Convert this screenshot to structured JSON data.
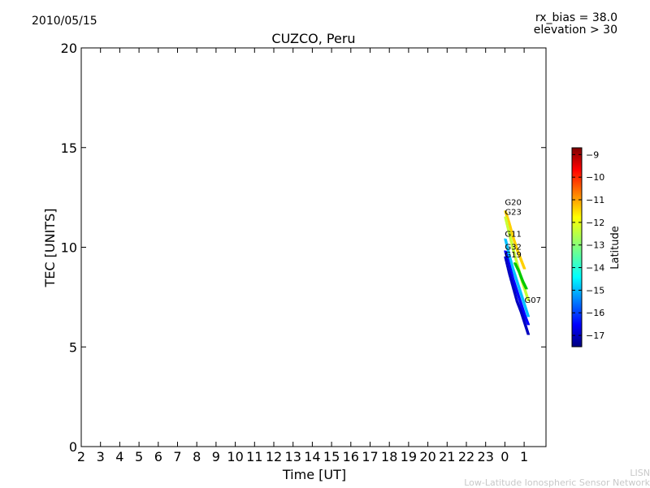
{
  "header": {
    "date": "2010/05/15",
    "info_line1": "rx_bias = 38.0",
    "info_line2": "elevation > 30",
    "title": "CUZCO, Peru"
  },
  "footer": {
    "line1": "LISN",
    "line2": "Low-Latitude Ionospheric Sensor Network"
  },
  "colors": {
    "colormap": [
      "#00007f",
      "#0000ff",
      "#007fff",
      "#00ffff",
      "#7fff7f",
      "#ffff00",
      "#ff7f00",
      "#ff0000",
      "#7f0000"
    ],
    "axis": "#000000"
  },
  "chart_data": {
    "type": "scatter",
    "title": "CUZCO, Peru",
    "xlabel": "Time [UT]",
    "ylabel": "TEC [UNITS]",
    "ylim": [
      0,
      20
    ],
    "yticks": [
      "0",
      "5",
      "10",
      "15",
      "20"
    ],
    "xticks": [
      "2",
      "3",
      "4",
      "5",
      "6",
      "7",
      "8",
      "9",
      "10",
      "11",
      "12",
      "13",
      "14",
      "15",
      "16",
      "17",
      "18",
      "19",
      "20",
      "21",
      "22",
      "23",
      "0",
      "1"
    ],
    "grid": false,
    "colorbar": {
      "label": "Latitude",
      "range": [
        -17.5,
        -8.7
      ],
      "ticks": [
        "−9",
        "−10",
        "−11",
        "−12",
        "−13",
        "−14",
        "−15",
        "−16",
        "−17"
      ],
      "tick_values": [
        -9,
        -10,
        -11,
        -12,
        -13,
        -14,
        -15,
        -16,
        -17
      ]
    },
    "series": [
      {
        "name": "G20",
        "color": "#ffd000",
        "x": [
          24.0,
          24.2,
          24.4,
          24.6,
          24.8,
          25.0
        ],
        "y": [
          11.8,
          11.2,
          10.5,
          9.9,
          9.4,
          8.9
        ]
      },
      {
        "name": "G23",
        "color": "#c8ff30",
        "x": [
          24.0,
          24.2,
          24.4,
          24.6,
          24.8,
          25.0,
          25.2
        ],
        "y": [
          11.5,
          10.7,
          9.9,
          9.2,
          8.5,
          7.9,
          7.3
        ]
      },
      {
        "name": "G11",
        "color": "#00c0ff",
        "x": [
          24.0,
          24.2,
          24.4,
          24.6,
          24.8,
          25.0,
          25.2
        ],
        "y": [
          10.4,
          9.6,
          8.9,
          8.3,
          7.7,
          7.1,
          6.5
        ]
      },
      {
        "name": "G32",
        "color": "#0000ff",
        "x": [
          24.0,
          24.2,
          24.4,
          24.6,
          24.8,
          25.0,
          25.2
        ],
        "y": [
          9.8,
          9.1,
          8.4,
          7.8,
          7.2,
          6.6,
          6.1
        ]
      },
      {
        "name": "G19",
        "color": "#0000c0",
        "x": [
          24.0,
          24.2,
          24.4,
          24.6,
          24.8,
          25.0,
          25.2
        ],
        "y": [
          9.5,
          8.7,
          8.0,
          7.3,
          6.8,
          6.2,
          5.6
        ]
      },
      {
        "name": "G07",
        "color": "#00c800",
        "x": [
          24.5,
          24.7,
          24.9,
          25.1
        ],
        "y": [
          9.2,
          8.8,
          8.3,
          7.9
        ]
      }
    ]
  }
}
